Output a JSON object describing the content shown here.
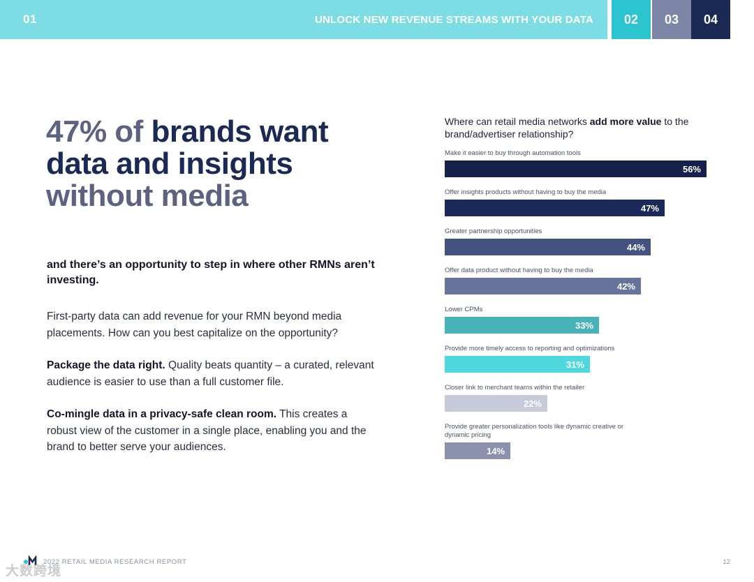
{
  "nav": {
    "section_number": "01",
    "section_title": "UNLOCK NEW REVENUE STREAMS WITH YOUR DATA",
    "tabs": [
      "02",
      "03",
      "04"
    ]
  },
  "headline": {
    "part1": "47% of",
    "part2": " brands want data and insights",
    "part3": "without media"
  },
  "subhead": "and there’s an opportunity to step in where other RMNs aren’t investing.",
  "paragraphs": {
    "p1": "First-party data can add revenue for your RMN beyond media placements. How can you best capitalize on the opportunity?",
    "p2_bold": "Package the data right.",
    "p2_text": " Quality beats quantity – a curated, relevant audience is easier to use than a full customer file.",
    "p3_bold": "Co-mingle data in a privacy-safe clean room.",
    "p3_text": " This creates a robust view of the customer in a single place, enabling you and the brand to better serve your audiences."
  },
  "chart_data": {
    "type": "bar",
    "title_pre": "Where can retail media networks ",
    "title_bold": "add more value",
    "title_post": " to the brand/advertiser relationship?",
    "categories": [
      "Make it easier to buy through automation tools",
      "Offer insights products without having to buy the media",
      "Greater partnership opportunities",
      "Offer data product without having to buy the media",
      "Lower CPMs",
      "Provide more timely access to reporting and optimizations",
      "Closer link to merchant teams within the retailer",
      "Provide greater personalization tools like dynamic creative or dynamic pricing"
    ],
    "values": [
      56,
      47,
      44,
      42,
      33,
      31,
      22,
      14
    ],
    "value_labels": [
      "56%",
      "47%",
      "44%",
      "42%",
      "33%",
      "31%",
      "22%",
      "14%"
    ],
    "colors": [
      "#15214a",
      "#1b2a5a",
      "#43527f",
      "#67739a",
      "#48b4ba",
      "#4fd8de",
      "#c7cbd9",
      "#8c92ae"
    ]
  },
  "footer": {
    "report": "2022 RETAIL MEDIA RESEARCH REPORT",
    "page": "12",
    "watermark": "大数跨境"
  },
  "colors": {
    "nav_band": "#7ddde4",
    "tab_02": "#2bc4cf",
    "tab_03": "#7e86a7",
    "tab_04": "#1b2a55",
    "headline_dark": "#1b2a55",
    "headline_muted": "#5d6280"
  }
}
